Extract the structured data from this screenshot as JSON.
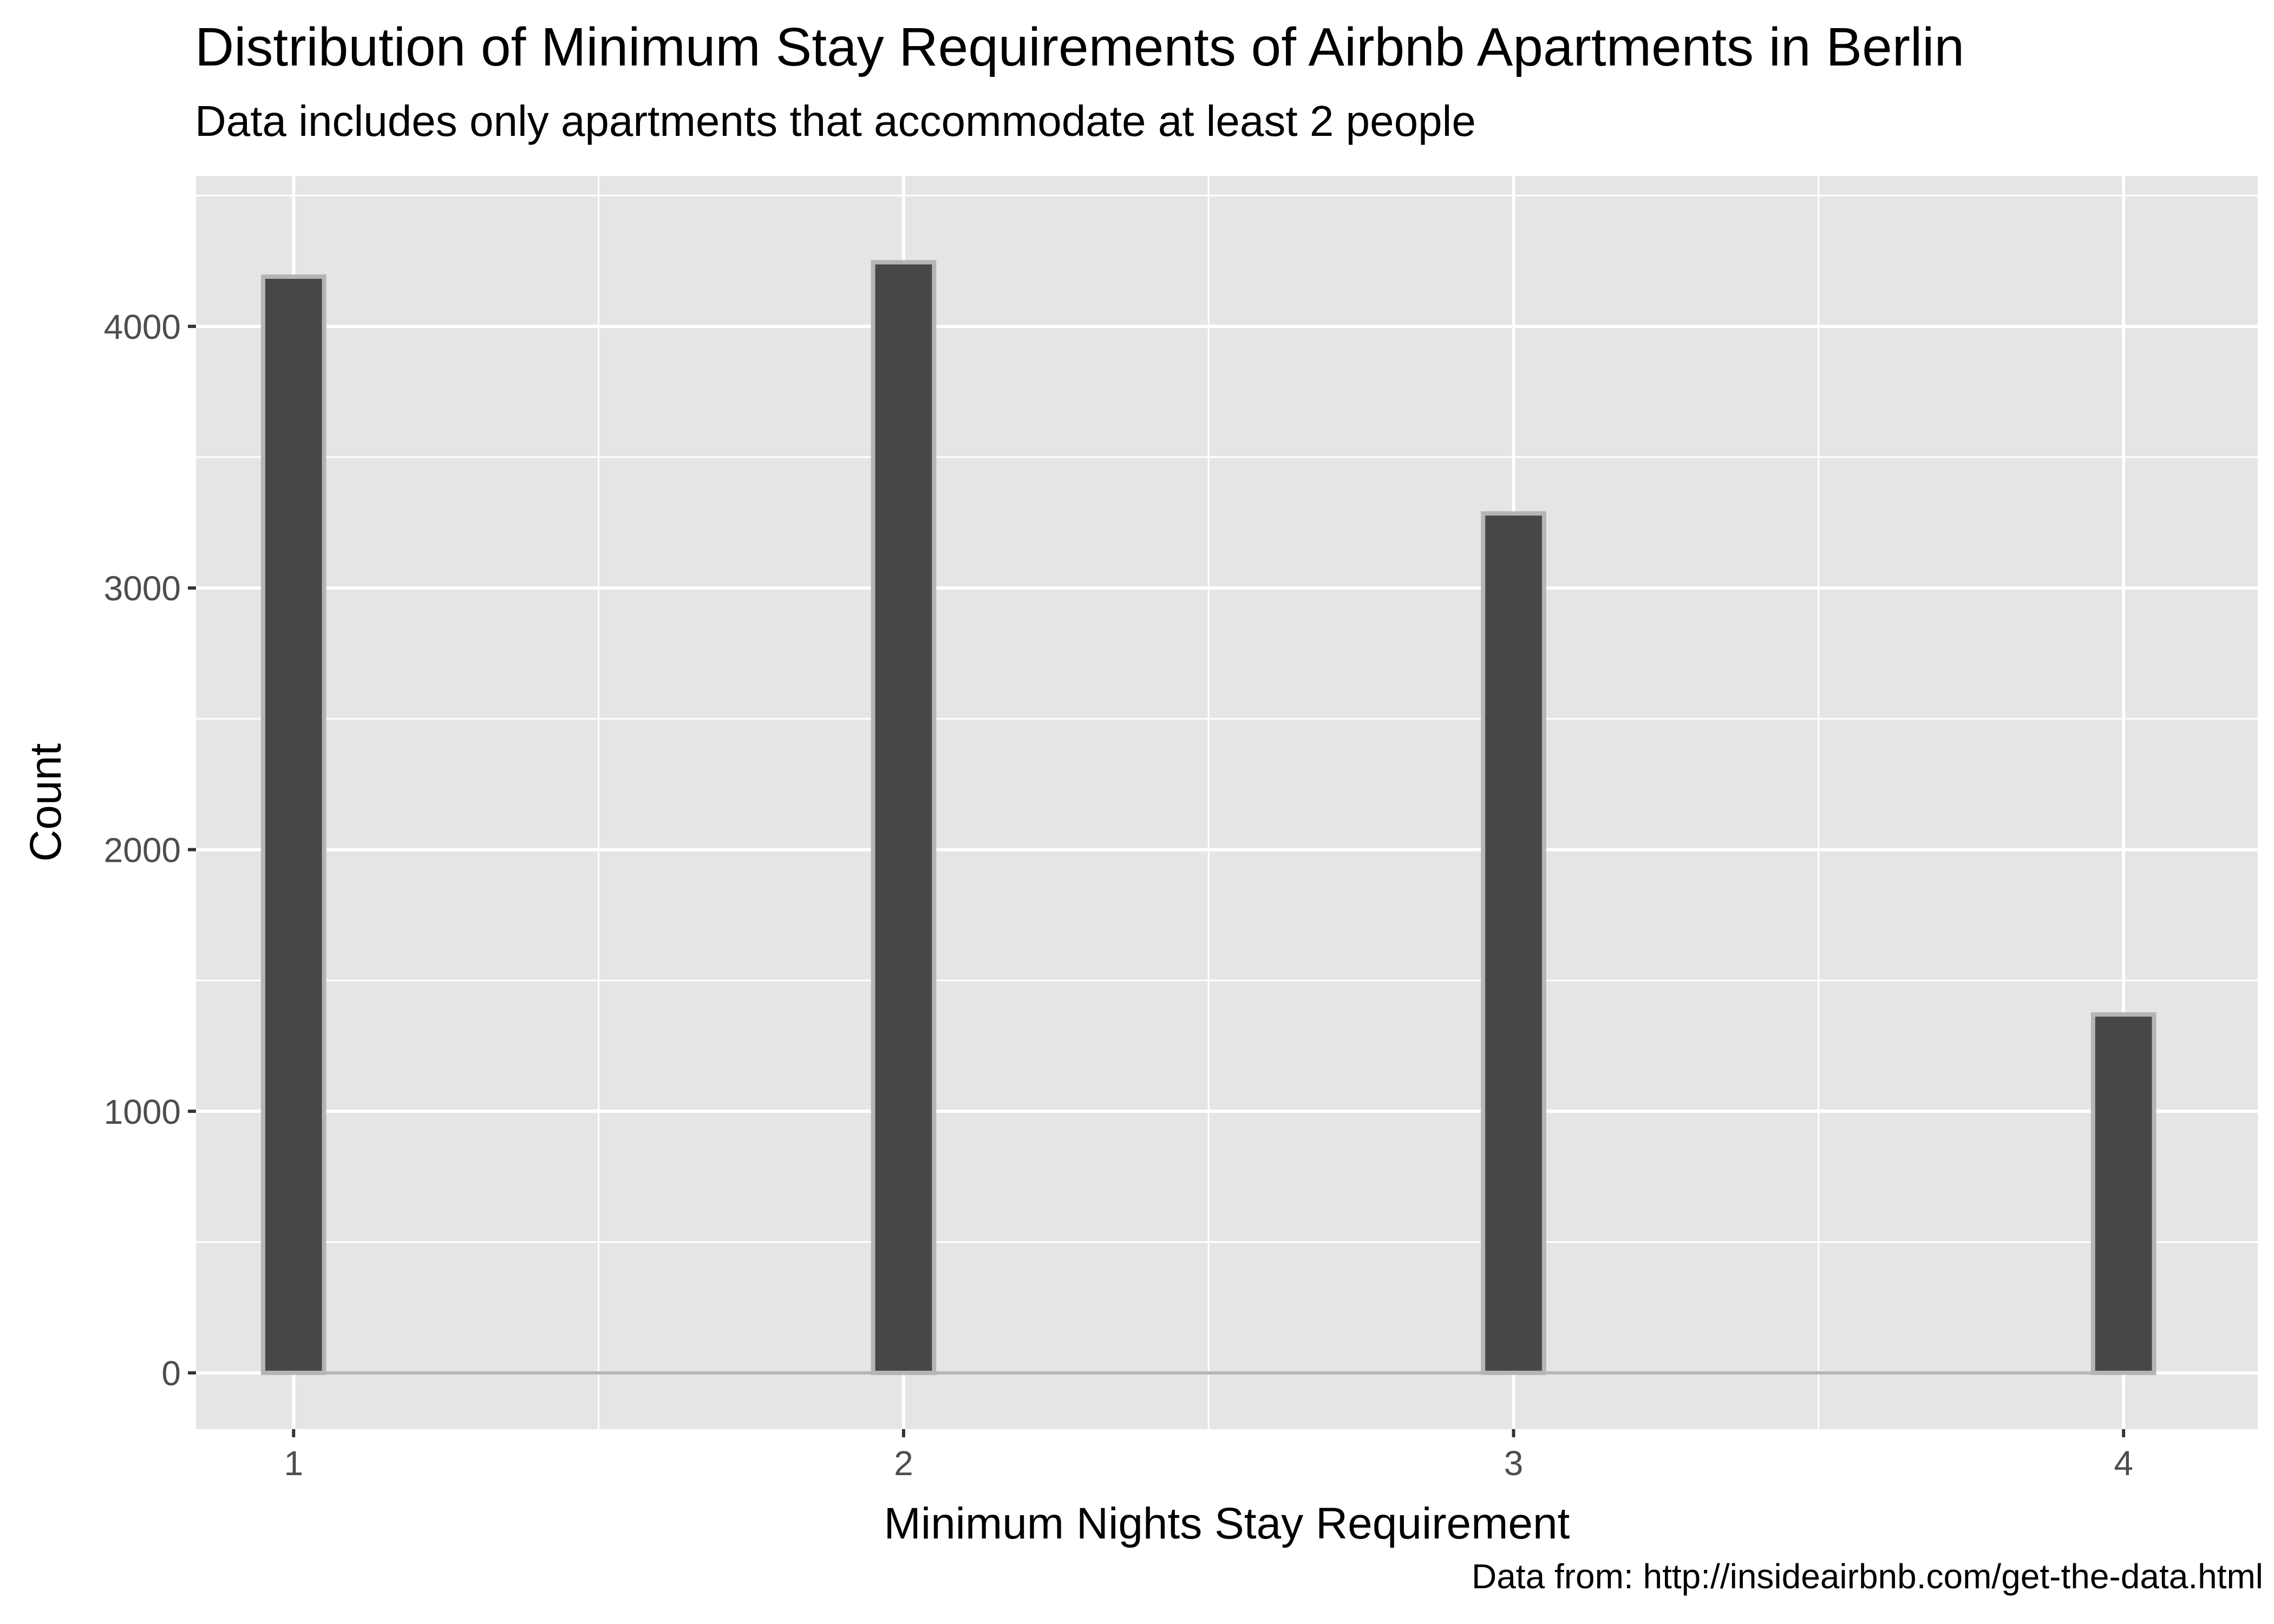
{
  "chart_data": {
    "type": "bar",
    "title": "Distribution of Minimum Stay Requirements of Airbnb Apartments in Berlin",
    "subtitle": "Data includes only apartments that accommodate at least 2 people",
    "caption": "Data from: http://insideairbnb.com/get-the-data.html",
    "xlabel": "Minimum Nights Stay Requirement",
    "ylabel": "Count",
    "categories": [
      1,
      2,
      3,
      4
    ],
    "values": [
      4190,
      4245,
      3285,
      1370
    ],
    "xlim": [
      0.84,
      4.22
    ],
    "ylim": [
      -215,
      4575
    ],
    "x_ticks": [
      1,
      2,
      3,
      4
    ],
    "x_tick_labels": [
      "1",
      "2",
      "3",
      "4"
    ],
    "y_ticks": [
      0,
      1000,
      2000,
      3000,
      4000
    ],
    "y_tick_labels": [
      "0",
      "1000",
      "2000",
      "3000",
      "4000"
    ],
    "grid": true,
    "colors": {
      "panel": "#e5e5e5",
      "grid": "#ffffff",
      "bar_fill": "#474747",
      "bar_outline": "#b5b5b5",
      "tick_label": "#4d4d4d"
    }
  }
}
